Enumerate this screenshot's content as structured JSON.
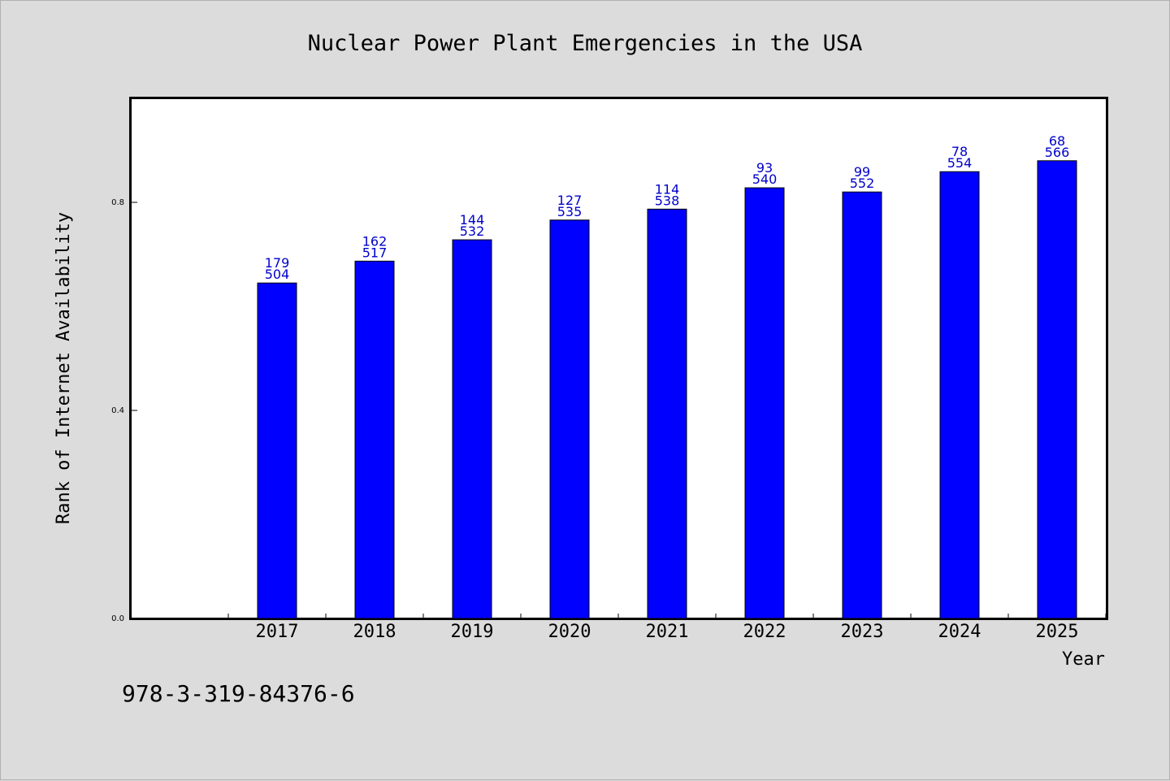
{
  "chart_data": {
    "type": "bar",
    "title": "Nuclear Power Plant Emergencies in the USA",
    "xlabel": "Year",
    "ylabel": "Rank of Internet Availability",
    "categories": [
      "2017",
      "2018",
      "2019",
      "2020",
      "2021",
      "2022",
      "2023",
      "2024",
      "2025"
    ],
    "values": [
      0.645,
      0.687,
      0.728,
      0.766,
      0.787,
      0.828,
      0.82,
      0.859,
      0.88
    ],
    "bar_labels_top": [
      "179",
      "162",
      "144",
      "127",
      "114",
      "93",
      "99",
      "78",
      "68"
    ],
    "bar_labels_bottom": [
      "504",
      "517",
      "532",
      "535",
      "538",
      "540",
      "552",
      "554",
      "566"
    ],
    "yticks": [
      "0.0",
      "0.4",
      "0.8"
    ],
    "ylim": [
      0,
      1.0
    ],
    "grid": false,
    "colors": {
      "bar": "#0000ff",
      "data_label": "#0000cc",
      "background": "#dcdcdc",
      "plot_bg": "#ffffff"
    }
  },
  "footer": {
    "isbn": "978-3-319-84376-6"
  }
}
